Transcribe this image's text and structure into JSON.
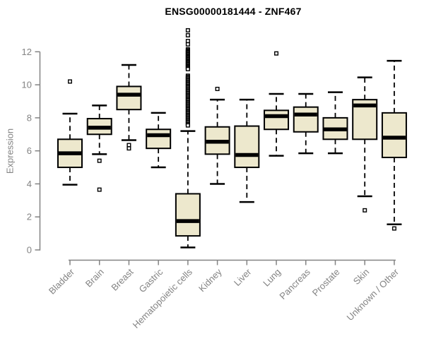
{
  "colors": {
    "background": "#ffffff",
    "box_fill": "#EDE8CD",
    "box_stroke": "#000000",
    "median": "#000000",
    "axis": "#838383",
    "title": "#000000"
  },
  "chart_data": {
    "type": "boxplot",
    "title": "ENSG00000181444 - ZNF467",
    "ylabel": "Expression",
    "xlabel": "",
    "ylim": [
      0,
      13.5
    ],
    "yticks": [
      0,
      2,
      4,
      6,
      8,
      10,
      12
    ],
    "grid": false,
    "legend": "none",
    "categories": [
      "Bladder",
      "Brain",
      "Breast",
      "Gastric",
      "Hematopoietic cells",
      "Kidney",
      "Liver",
      "Lung",
      "Pancreas",
      "Prostate",
      "Skin",
      "Unknown / Other"
    ],
    "boxes": [
      {
        "name": "Bladder",
        "whisker_low": 3.95,
        "q1": 5.0,
        "median": 5.85,
        "q3": 6.7,
        "whisker_high": 8.25,
        "outliers": [
          10.2
        ]
      },
      {
        "name": "Brain",
        "whisker_low": 5.8,
        "q1": 7.0,
        "median": 7.4,
        "q3": 7.95,
        "whisker_high": 8.75,
        "outliers": [
          5.4,
          3.65
        ]
      },
      {
        "name": "Breast",
        "whisker_low": 6.65,
        "q1": 8.5,
        "median": 9.4,
        "q3": 9.9,
        "whisker_high": 11.2,
        "outliers": [
          6.35,
          6.15
        ]
      },
      {
        "name": "Gastric",
        "whisker_low": 5.0,
        "q1": 6.15,
        "median": 6.95,
        "q3": 7.3,
        "whisker_high": 8.3,
        "outliers": []
      },
      {
        "name": "Hematopoietic cells",
        "whisker_low": 0.15,
        "q1": 0.85,
        "median": 1.75,
        "q3": 3.4,
        "whisker_high": 7.2,
        "outliers": [
          13.3,
          13.0,
          12.65,
          12.45,
          12.15,
          12.09,
          12.03,
          11.97,
          11.91,
          11.85,
          11.79,
          11.73,
          11.67,
          11.61,
          11.55,
          11.49,
          11.43,
          11.37,
          11.31,
          11.25,
          11.19,
          11.13,
          11.07,
          11.01,
          10.95,
          10.55,
          10.48,
          10.41,
          10.34,
          10.27,
          10.2,
          10.13,
          10.06,
          9.99,
          9.92,
          9.85,
          9.78,
          9.71,
          9.64,
          9.57,
          9.5,
          9.43,
          9.36,
          9.29,
          9.22,
          9.15,
          9.08,
          9.01,
          8.94,
          8.87,
          8.8,
          8.73,
          8.66,
          8.59,
          8.52,
          8.45,
          8.38,
          8.31,
          8.24,
          8.17,
          8.1,
          8.03,
          7.96,
          7.89,
          7.82,
          7.75,
          7.68,
          7.61,
          7.54
        ]
      },
      {
        "name": "Kidney",
        "whisker_low": 4.0,
        "q1": 5.8,
        "median": 6.55,
        "q3": 7.45,
        "whisker_high": 9.1,
        "outliers": [
          9.75
        ]
      },
      {
        "name": "Liver",
        "whisker_low": 2.9,
        "q1": 5.0,
        "median": 5.75,
        "q3": 7.5,
        "whisker_high": 9.1,
        "outliers": []
      },
      {
        "name": "Lung",
        "whisker_low": 5.7,
        "q1": 7.3,
        "median": 8.1,
        "q3": 8.45,
        "whisker_high": 9.45,
        "outliers": [
          11.9
        ]
      },
      {
        "name": "Pancreas",
        "whisker_low": 5.85,
        "q1": 7.15,
        "median": 8.2,
        "q3": 8.65,
        "whisker_high": 9.45,
        "outliers": []
      },
      {
        "name": "Prostate",
        "whisker_low": 5.85,
        "q1": 6.7,
        "median": 7.3,
        "q3": 8.0,
        "whisker_high": 9.55,
        "outliers": []
      },
      {
        "name": "Skin",
        "whisker_low": 3.25,
        "q1": 6.7,
        "median": 8.75,
        "q3": 9.1,
        "whisker_high": 10.45,
        "outliers": [
          2.4
        ]
      },
      {
        "name": "Unknown / Other",
        "whisker_low": 1.55,
        "q1": 5.6,
        "median": 6.8,
        "q3": 8.3,
        "whisker_high": 11.45,
        "outliers": [
          1.3
        ]
      }
    ]
  }
}
